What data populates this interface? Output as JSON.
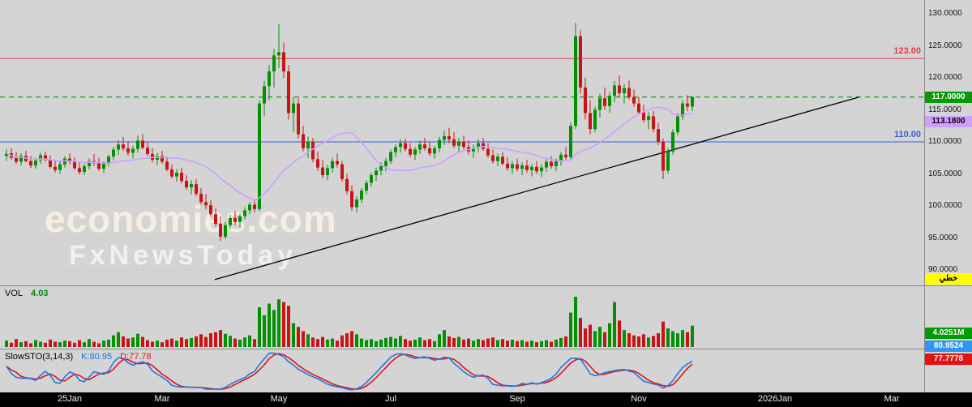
{
  "watermark": {
    "line1": "economies.com",
    "line2": "FxNewsToday"
  },
  "main_panel": {
    "badges": {
      "last_price": {
        "label": "117.0000",
        "price": 117.0,
        "bg": "#009b00",
        "fg": "#ffffff"
      },
      "ma_value": {
        "label": "113.1800",
        "price": 113.18,
        "bg": "#cf9fff",
        "fg": "#000000"
      },
      "chart_type": {
        "label": "خطي",
        "bg": "#ffff00",
        "fg": "#000000"
      }
    }
  },
  "volume_panel": {
    "title": "VOL",
    "value": "4.03",
    "value_color": "#008a00",
    "badge": {
      "label": "4.0251M",
      "bg": "#009b00",
      "fg": "#ffffff"
    }
  },
  "stoch_panel": {
    "title": "SlowSTO(3,14,3)",
    "k_label": "K:80.95",
    "d_label": "D:77.78",
    "k_color": "#1e78e6",
    "d_color": "#e01414",
    "k_badge": {
      "label": "80.9524",
      "bg": "#2f96f3",
      "fg": "#ffffff"
    },
    "d_badge": {
      "label": "77.7778",
      "bg": "#e01414",
      "fg": "#ffffff"
    }
  },
  "colors": {
    "up": "#009000",
    "down": "#c81414",
    "grid": "#bdbdbd",
    "axis_text": "#111111",
    "time_bar_bg": "#010101",
    "time_bar_fg": "#eeeeee",
    "background": "#d4d4d4"
  },
  "chart_data": {
    "type": "candlestick",
    "title": "",
    "price_axis": {
      "min": 90,
      "max": 130,
      "tick_step": 5,
      "ticks": [
        {
          "label": "130.0000",
          "price": 130
        },
        {
          "label": "125.0000",
          "price": 125
        },
        {
          "label": "120.0000",
          "price": 120
        },
        {
          "label": "115.0000",
          "price": 115
        },
        {
          "label": "110.0000",
          "price": 110
        },
        {
          "label": "105.0000",
          "price": 105
        },
        {
          "label": "100.0000",
          "price": 100
        },
        {
          "label": "95.0000",
          "price": 95
        },
        {
          "label": "90.0000",
          "price": 90
        }
      ]
    },
    "time_axis": {
      "labels": [
        {
          "text": "25Jan",
          "index": 13
        },
        {
          "text": "Mar",
          "index": 32
        },
        {
          "text": "May",
          "index": 56
        },
        {
          "text": "Jul",
          "index": 79
        },
        {
          "text": "Sep",
          "index": 105
        },
        {
          "text": "Nov",
          "index": 130
        },
        {
          "text": "2026Jan",
          "index": 158
        },
        {
          "text": "Mar",
          "index": 182
        }
      ]
    },
    "overlays": {
      "horizontal_lines": [
        {
          "price": 123,
          "color": "#e03c46",
          "style": "solid",
          "label": "123.00"
        },
        {
          "price": 117,
          "color": "#007d00",
          "style": "dashed",
          "label": ""
        },
        {
          "price": 110,
          "color": "#3c5fc8",
          "style": "solid",
          "label": "110.00"
        }
      ],
      "trend_line": {
        "from_index": 42.8,
        "from_price": 88.5,
        "to_index": 175.3,
        "to_price": 117.0,
        "color": "#000000"
      },
      "ma": {
        "period": 20,
        "color": "#cf9fff",
        "last_value": 113.18
      }
    },
    "stochastic": {
      "period": 14,
      "slowing": 3,
      "d_period": 3,
      "k": 80.95,
      "d": 77.78
    },
    "ohlc": [
      [
        107.8,
        108.9,
        107.0,
        108.2
      ],
      [
        108.2,
        109.0,
        107.2,
        107.5
      ],
      [
        107.5,
        108.4,
        106.5,
        106.9
      ],
      [
        106.9,
        108.2,
        106.3,
        107.8
      ],
      [
        107.8,
        108.6,
        106.8,
        107.0
      ],
      [
        107.0,
        107.8,
        105.9,
        106.3
      ],
      [
        106.3,
        107.5,
        105.8,
        107.1
      ],
      [
        107.1,
        108.3,
        106.6,
        107.9
      ],
      [
        107.9,
        108.5,
        106.9,
        107.2
      ],
      [
        107.2,
        107.9,
        105.8,
        106.1
      ],
      [
        106.1,
        107.2,
        105.2,
        105.6
      ],
      [
        105.6,
        106.9,
        105.0,
        106.5
      ],
      [
        106.5,
        107.8,
        106.0,
        107.4
      ],
      [
        107.4,
        108.2,
        106.5,
        106.9
      ],
      [
        106.9,
        107.6,
        105.6,
        105.9
      ],
      [
        105.9,
        106.8,
        104.9,
        105.3
      ],
      [
        105.3,
        106.6,
        104.8,
        106.2
      ],
      [
        106.2,
        107.4,
        105.7,
        107.0
      ],
      [
        107.0,
        108.1,
        106.3,
        106.7
      ],
      [
        106.7,
        107.5,
        105.5,
        105.8
      ],
      [
        105.8,
        107.0,
        105.2,
        106.6
      ],
      [
        106.6,
        108.0,
        106.1,
        107.7
      ],
      [
        107.7,
        109.2,
        107.1,
        108.8
      ],
      [
        108.8,
        110.3,
        108.0,
        109.6
      ],
      [
        109.6,
        110.8,
        108.6,
        109.0
      ],
      [
        109.0,
        110.1,
        107.9,
        108.3
      ],
      [
        108.3,
        109.4,
        107.4,
        108.9
      ],
      [
        108.9,
        111.0,
        108.3,
        110.2
      ],
      [
        110.2,
        111.2,
        108.8,
        109.1
      ],
      [
        109.1,
        110.0,
        107.8,
        108.1
      ],
      [
        108.1,
        109.0,
        106.8,
        107.2
      ],
      [
        107.2,
        108.3,
        106.4,
        107.8
      ],
      [
        107.8,
        108.6,
        106.6,
        106.9
      ],
      [
        106.9,
        107.7,
        105.4,
        105.7
      ],
      [
        105.7,
        106.5,
        104.3,
        104.6
      ],
      [
        104.6,
        105.8,
        103.8,
        105.2
      ],
      [
        105.2,
        106.0,
        103.5,
        103.9
      ],
      [
        103.9,
        104.8,
        102.5,
        102.9
      ],
      [
        102.9,
        104.0,
        101.8,
        103.4
      ],
      [
        103.4,
        104.2,
        101.5,
        101.9
      ],
      [
        101.9,
        102.8,
        100.2,
        100.6
      ],
      [
        100.6,
        101.8,
        99.5,
        100.1
      ],
      [
        100.1,
        100.9,
        98.3,
        98.7
      ],
      [
        98.7,
        99.6,
        96.8,
        97.2
      ],
      [
        97.2,
        98.4,
        94.5,
        95.2
      ],
      [
        95.2,
        97.5,
        94.8,
        97.0
      ],
      [
        97.0,
        98.6,
        96.4,
        98.1
      ],
      [
        98.1,
        99.2,
        97.0,
        97.5
      ],
      [
        97.5,
        98.8,
        96.6,
        98.4
      ],
      [
        98.4,
        99.8,
        97.9,
        99.3
      ],
      [
        99.3,
        100.6,
        98.7,
        100.2
      ],
      [
        100.2,
        101.0,
        99.0,
        99.5
      ],
      [
        99.5,
        116.5,
        99.2,
        116.0
      ],
      [
        116.0,
        119.5,
        114.0,
        118.7
      ],
      [
        118.7,
        122.0,
        116.5,
        121.0
      ],
      [
        121.0,
        124.5,
        118.5,
        123.5
      ],
      [
        123.5,
        128.4,
        121.5,
        124.0
      ],
      [
        124.0,
        125.5,
        120.0,
        121.0
      ],
      [
        121.0,
        122.0,
        113.5,
        114.5
      ],
      [
        114.5,
        117.0,
        111.5,
        116.0
      ],
      [
        116.0,
        116.8,
        110.5,
        111.2
      ],
      [
        111.2,
        112.5,
        108.5,
        109.0
      ],
      [
        109.0,
        110.8,
        107.5,
        110.0
      ],
      [
        110.0,
        110.6,
        106.8,
        107.3
      ],
      [
        107.3,
        108.5,
        105.5,
        106.0
      ],
      [
        106.0,
        107.2,
        104.3,
        104.8
      ],
      [
        104.8,
        106.4,
        104.0,
        105.9
      ],
      [
        105.9,
        107.5,
        105.2,
        107.0
      ],
      [
        107.0,
        108.2,
        106.0,
        106.5
      ],
      [
        106.5,
        107.0,
        103.8,
        104.2
      ],
      [
        104.2,
        105.0,
        101.8,
        102.3
      ],
      [
        102.3,
        103.2,
        99.2,
        99.8
      ],
      [
        99.8,
        101.5,
        99.0,
        101.0
      ],
      [
        101.0,
        102.8,
        100.4,
        102.4
      ],
      [
        102.4,
        104.0,
        101.8,
        103.6
      ],
      [
        103.6,
        105.2,
        103.0,
        104.8
      ],
      [
        104.8,
        106.0,
        103.9,
        105.5
      ],
      [
        105.5,
        106.8,
        104.8,
        106.2
      ],
      [
        106.2,
        107.5,
        105.4,
        107.0
      ],
      [
        107.0,
        108.8,
        106.5,
        108.4
      ],
      [
        108.4,
        109.6,
        107.6,
        109.2
      ],
      [
        109.2,
        110.4,
        108.3,
        109.8
      ],
      [
        109.8,
        110.5,
        108.5,
        108.9
      ],
      [
        108.9,
        109.8,
        107.6,
        108.0
      ],
      [
        108.0,
        109.2,
        107.2,
        108.8
      ],
      [
        108.8,
        110.2,
        108.1,
        109.6
      ],
      [
        109.6,
        110.6,
        108.6,
        109.0
      ],
      [
        109.0,
        110.0,
        107.8,
        108.2
      ],
      [
        108.2,
        109.4,
        107.4,
        109.0
      ],
      [
        109.0,
        110.8,
        108.4,
        110.3
      ],
      [
        110.3,
        111.8,
        109.5,
        110.9
      ],
      [
        110.9,
        112.2,
        109.8,
        110.4
      ],
      [
        110.4,
        111.5,
        109.0,
        109.4
      ],
      [
        109.4,
        110.6,
        108.3,
        110.0
      ],
      [
        110.0,
        111.0,
        108.8,
        109.2
      ],
      [
        109.2,
        110.2,
        108.0,
        108.5
      ],
      [
        108.5,
        109.6,
        107.5,
        109.1
      ],
      [
        109.1,
        110.4,
        108.4,
        109.8
      ],
      [
        109.8,
        110.6,
        108.6,
        108.9
      ],
      [
        108.9,
        109.8,
        107.5,
        107.9
      ],
      [
        107.9,
        108.8,
        106.6,
        107.0
      ],
      [
        107.0,
        108.2,
        106.2,
        107.7
      ],
      [
        107.7,
        108.4,
        106.3,
        106.6
      ],
      [
        106.6,
        107.6,
        105.5,
        105.9
      ],
      [
        105.9,
        107.0,
        105.0,
        106.5
      ],
      [
        106.5,
        107.4,
        105.4,
        105.8
      ],
      [
        105.8,
        106.8,
        104.8,
        106.3
      ],
      [
        106.3,
        107.2,
        105.2,
        105.6
      ],
      [
        105.6,
        106.6,
        104.6,
        106.1
      ],
      [
        106.1,
        107.0,
        105.0,
        105.4
      ],
      [
        105.4,
        106.5,
        104.5,
        106.0
      ],
      [
        106.0,
        107.3,
        105.3,
        106.9
      ],
      [
        106.9,
        107.8,
        105.8,
        106.2
      ],
      [
        106.2,
        107.4,
        105.4,
        107.0
      ],
      [
        107.0,
        108.4,
        106.3,
        108.0
      ],
      [
        108.0,
        109.2,
        107.2,
        107.6
      ],
      [
        107.6,
        113.0,
        107.2,
        112.5
      ],
      [
        112.5,
        128.6,
        112.0,
        126.5
      ],
      [
        126.5,
        127.5,
        117.5,
        118.5
      ],
      [
        118.5,
        120.0,
        113.5,
        114.5
      ],
      [
        114.5,
        116.5,
        111.2,
        112.0
      ],
      [
        112.0,
        115.5,
        111.5,
        115.0
      ],
      [
        115.0,
        117.5,
        113.8,
        116.8
      ],
      [
        116.8,
        118.5,
        115.0,
        115.6
      ],
      [
        115.6,
        117.8,
        114.5,
        117.2
      ],
      [
        117.2,
        119.5,
        116.2,
        118.8
      ],
      [
        118.8,
        120.4,
        117.0,
        117.6
      ],
      [
        117.6,
        119.0,
        116.0,
        118.4
      ],
      [
        118.4,
        119.6,
        116.6,
        117.0
      ],
      [
        117.0,
        118.2,
        115.5,
        116.0
      ],
      [
        116.0,
        117.0,
        114.2,
        114.6
      ],
      [
        114.6,
        115.8,
        113.0,
        113.4
      ],
      [
        113.4,
        114.6,
        112.0,
        114.0
      ],
      [
        114.0,
        114.8,
        111.5,
        112.0
      ],
      [
        112.0,
        113.0,
        109.5,
        110.0
      ],
      [
        110.0,
        110.5,
        104.2,
        105.5
      ],
      [
        105.5,
        109.0,
        105.0,
        108.5
      ],
      [
        108.5,
        112.0,
        108.0,
        111.5
      ],
      [
        111.5,
        114.5,
        111.0,
        114.0
      ],
      [
        114.0,
        116.5,
        113.4,
        116.0
      ],
      [
        116.0,
        117.3,
        114.8,
        115.5
      ],
      [
        115.5,
        117.2,
        114.8,
        117.0
      ]
    ],
    "volume": [
      1.2,
      0.8,
      1.5,
      0.9,
      1.1,
      0.7,
      1.3,
      1.0,
      0.8,
      1.4,
      1.0,
      0.9,
      1.2,
      1.1,
      0.8,
      1.3,
      0.9,
      1.5,
      1.0,
      0.7,
      1.2,
      1.4,
      2.2,
      2.8,
      2.0,
      1.6,
      1.8,
      2.5,
      1.9,
      1.3,
      1.0,
      1.2,
      0.9,
      1.4,
      1.6,
      1.2,
      1.8,
      1.5,
      1.7,
      2.0,
      2.4,
      1.9,
      2.6,
      2.8,
      3.2,
      2.5,
      2.1,
      1.6,
      1.4,
      1.8,
      2.2,
      1.5,
      7.5,
      6.0,
      8.2,
      7.0,
      9.0,
      8.5,
      7.8,
      4.5,
      3.8,
      3.0,
      2.4,
      1.8,
      1.5,
      1.9,
      1.4,
      1.6,
      1.2,
      2.2,
      2.6,
      3.0,
      2.4,
      1.6,
      1.3,
      1.5,
      1.1,
      1.4,
      1.7,
      1.9,
      1.6,
      2.1,
      1.5,
      1.2,
      1.4,
      1.8,
      1.3,
      1.5,
      1.1,
      2.4,
      3.2,
      2.0,
      1.7,
      1.9,
      1.4,
      1.6,
      1.2,
      1.5,
      1.3,
      1.6,
      1.8,
      1.3,
      1.5,
      1.2,
      1.4,
      1.1,
      1.3,
      1.0,
      1.2,
      0.9,
      1.1,
      1.3,
      1.0,
      1.4,
      1.7,
      2.0,
      6.5,
      9.5,
      5.5,
      3.5,
      4.2,
      3.0,
      3.8,
      2.8,
      4.5,
      8.5,
      5.0,
      3.2,
      2.6,
      2.2,
      2.0,
      2.4,
      1.8,
      2.1,
      2.6,
      4.8,
      3.5,
      3.0,
      2.6,
      3.2,
      2.8,
      4.03
    ]
  }
}
